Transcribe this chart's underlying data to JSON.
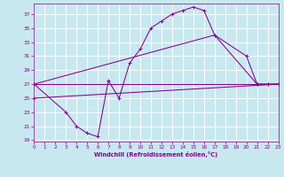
{
  "background_color": "#c8e8f0",
  "grid_color": "#b0d8e8",
  "line_color": "#880088",
  "xlabel": "Windchill (Refroidissement éolien,°C)",
  "xlim": [
    0,
    23
  ],
  "ylim": [
    18.8,
    38.5
  ],
  "xticks": [
    0,
    1,
    2,
    3,
    4,
    5,
    6,
    7,
    8,
    9,
    10,
    11,
    12,
    13,
    14,
    15,
    16,
    17,
    18,
    19,
    20,
    21,
    22,
    23
  ],
  "yticks": [
    19,
    21,
    23,
    25,
    27,
    29,
    31,
    33,
    35,
    37
  ],
  "curve1_x": [
    0,
    3,
    4,
    5,
    6,
    7,
    8,
    9,
    10,
    11,
    12,
    13,
    14,
    15,
    16,
    17,
    20,
    21,
    22,
    23
  ],
  "curve1_y": [
    27,
    23,
    21,
    20,
    19.5,
    27.5,
    25,
    30,
    32,
    35,
    36,
    37,
    37.5,
    38,
    37.5,
    34,
    31,
    27,
    27,
    27
  ],
  "line2_x": [
    0,
    17,
    21,
    22,
    23
  ],
  "line2_y": [
    27,
    34,
    27,
    27,
    27
  ],
  "line3_x": [
    0,
    23
  ],
  "line3_y": [
    27,
    27
  ],
  "line4_x": [
    0,
    23
  ],
  "line4_y": [
    25,
    27
  ]
}
